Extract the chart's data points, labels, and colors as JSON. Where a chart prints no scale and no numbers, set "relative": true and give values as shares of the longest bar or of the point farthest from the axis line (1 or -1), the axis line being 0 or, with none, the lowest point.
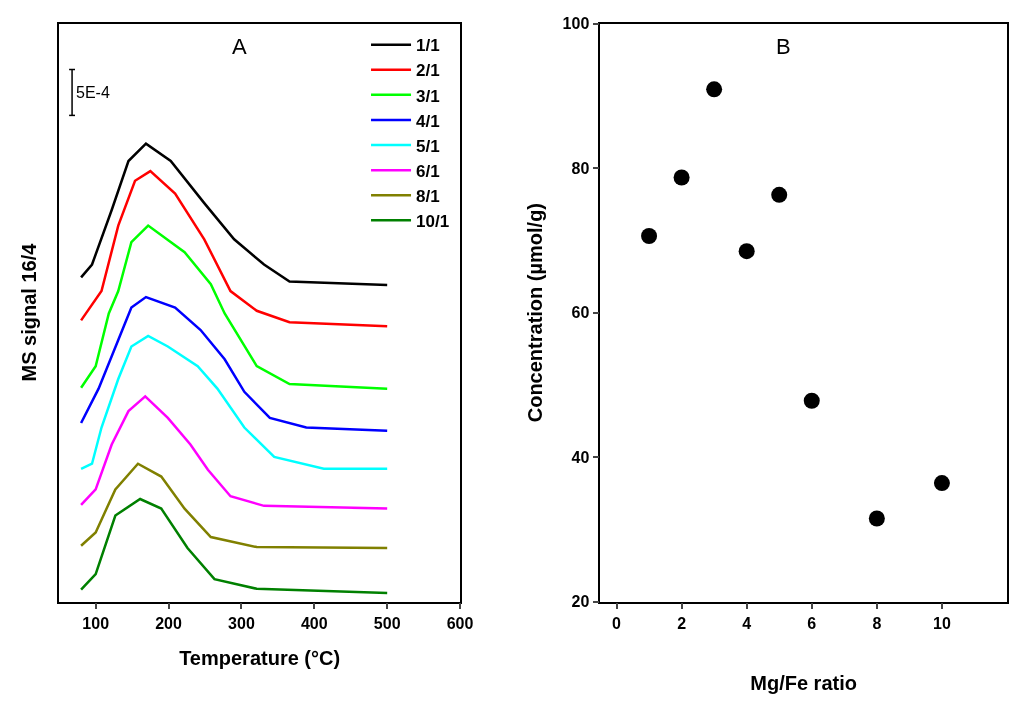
{
  "chart_data": [
    {
      "type": "line",
      "title": "A",
      "xlabel": "Temperature (°C)",
      "ylabel": "MS signal 16/4",
      "relative": true,
      "xlim": [
        50,
        600
      ],
      "xticks": [
        100,
        200,
        300,
        400,
        500,
        600
      ],
      "tick_labels": "x",
      "legend": "top right",
      "marker": "none",
      "line_style": "solid",
      "annotations": [
        "5E-4"
      ],
      "series": [
        {
          "name": "1/1",
          "color": "#000000",
          "x": [
            80,
            95,
            122,
            145,
            169,
            203,
            249,
            290,
            331,
            366,
            500
          ],
          "values": [
            0.708,
            0.736,
            0.855,
            0.962,
            1.0,
            0.962,
            0.87,
            0.791,
            0.736,
            0.699,
            0.691
          ]
        },
        {
          "name": "2/1",
          "color": "#ff0000",
          "x": [
            80,
            108,
            131,
            154,
            175,
            209,
            249,
            285,
            321,
            366,
            500
          ],
          "values": [
            0.614,
            0.678,
            0.821,
            0.919,
            0.94,
            0.891,
            0.791,
            0.678,
            0.635,
            0.61,
            0.601
          ]
        },
        {
          "name": "3/1",
          "color": "#00ff00",
          "x": [
            80,
            100,
            118,
            131,
            149,
            172,
            222,
            258,
            277,
            321,
            366,
            500
          ],
          "values": [
            0.467,
            0.514,
            0.629,
            0.678,
            0.785,
            0.821,
            0.763,
            0.693,
            0.629,
            0.514,
            0.475,
            0.465
          ]
        },
        {
          "name": "4/1",
          "color": "#0000ff",
          "x": [
            80,
            104,
            131,
            149,
            169,
            209,
            244,
            277,
            304,
            339,
            389,
            500
          ],
          "values": [
            0.39,
            0.465,
            0.571,
            0.642,
            0.665,
            0.642,
            0.593,
            0.529,
            0.458,
            0.401,
            0.38,
            0.373
          ]
        },
        {
          "name": "5/1",
          "color": "#00ffff",
          "x": [
            80,
            95,
            108,
            131,
            149,
            172,
            199,
            240,
            267,
            304,
            345,
            413,
            500
          ],
          "values": [
            0.29,
            0.301,
            0.38,
            0.486,
            0.557,
            0.58,
            0.557,
            0.514,
            0.465,
            0.38,
            0.316,
            0.29,
            0.29
          ]
        },
        {
          "name": "6/1",
          "color": "#ff00ff",
          "x": [
            80,
            100,
            122,
            145,
            168,
            199,
            230,
            254,
            285,
            331,
            500
          ],
          "values": [
            0.211,
            0.245,
            0.343,
            0.416,
            0.448,
            0.401,
            0.343,
            0.288,
            0.23,
            0.209,
            0.203
          ]
        },
        {
          "name": "8/1",
          "color": "#808000",
          "x": [
            80,
            100,
            127,
            158,
            190,
            222,
            258,
            321,
            500
          ],
          "values": [
            0.122,
            0.151,
            0.245,
            0.301,
            0.273,
            0.203,
            0.141,
            0.119,
            0.117
          ]
        },
        {
          "name": "10/1",
          "color": "#008000",
          "x": [
            80,
            100,
            127,
            161,
            190,
            226,
            263,
            321,
            500
          ],
          "values": [
            0.026,
            0.06,
            0.188,
            0.224,
            0.203,
            0.117,
            0.049,
            0.028,
            0.019
          ]
        }
      ]
    },
    {
      "type": "scatter",
      "title": "B",
      "xlabel": "Mg/Fe ratio",
      "ylabel": "Concentration (µmol/g)",
      "xlim": [
        -0.5,
        12
      ],
      "xticks": [
        0,
        2,
        4,
        6,
        8,
        10
      ],
      "ylim": [
        20,
        100
      ],
      "yticks": [
        20,
        40,
        60,
        80,
        100
      ],
      "marker": "circle",
      "legend": false,
      "series": [
        {
          "color": "#000000",
          "x": [
            1,
            2,
            3,
            4,
            5,
            6,
            8,
            10
          ],
          "values": [
            70.6,
            78.7,
            90.9,
            68.5,
            76.3,
            47.8,
            31.5,
            36.4
          ]
        }
      ]
    }
  ]
}
